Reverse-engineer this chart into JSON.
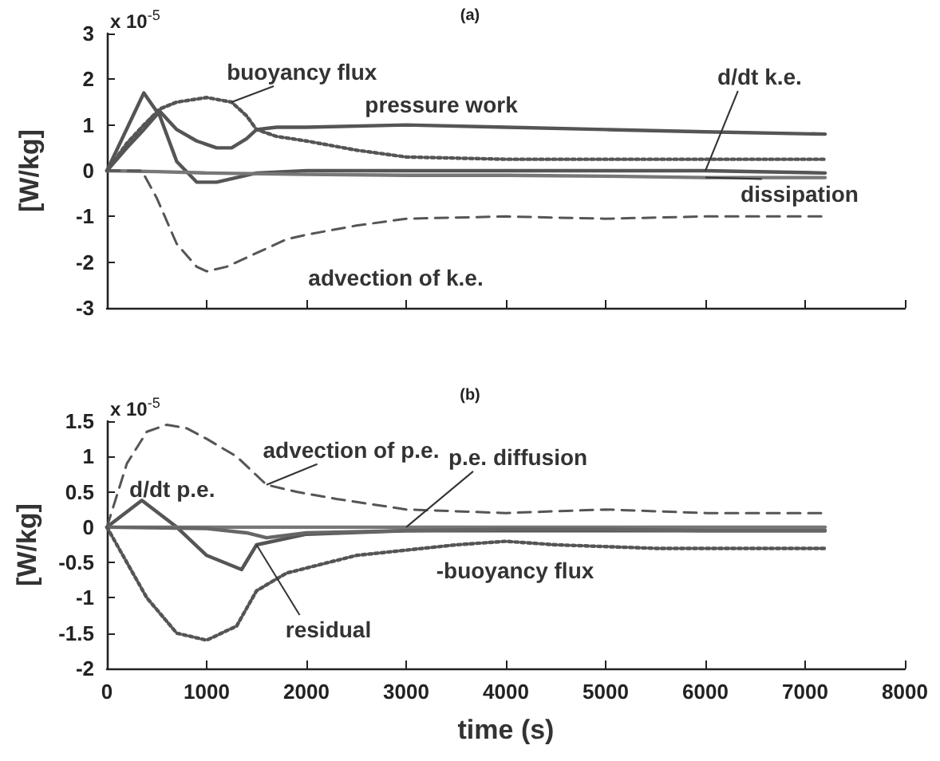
{
  "chart_data": [
    {
      "type": "line",
      "title": "(a)",
      "ylabel": "[W/kg]",
      "xlim": [
        0,
        8000
      ],
      "xticks": [
        0,
        1000,
        2000,
        3000,
        4000,
        5000,
        6000,
        7000,
        8000
      ],
      "ylim": [
        -3,
        3
      ],
      "yticks": [
        -3,
        -2,
        -1,
        0,
        1,
        2,
        3
      ],
      "tick_labels": "y",
      "grid": false,
      "marker": "none",
      "annotations": [
        "x 10$^{-5}$",
        {
          "text": "buoyancy flux",
          "x": 1250,
          "y": 1.5
        },
        {
          "text": "pressure work",
          "x": 3000,
          "y": 1.0
        },
        {
          "text": "d/dt k.e.",
          "x": 6000,
          "y": 0
        },
        {
          "text": "dissipation",
          "x": 6000,
          "y": -0.15
        },
        {
          "text": "advection of k.e.",
          "x": 2000,
          "y": -1.4
        }
      ],
      "series": [
        {
          "color": "#555555",
          "line_style": "solid",
          "x": [
            0,
            200,
            370,
            530,
            700,
            900,
            1100,
            1250,
            1400,
            1500,
            1700,
            2000,
            3000,
            4000,
            5000,
            6000,
            7200
          ],
          "values": [
            0,
            0.5,
            0.9,
            1.3,
            0.9,
            0.65,
            0.5,
            0.5,
            0.7,
            0.9,
            0.95,
            0.95,
            1.0,
            0.95,
            0.9,
            0.85,
            0.8
          ]
        },
        {
          "color": "#555555",
          "line_style": "solid",
          "x": [
            0,
            370,
            530,
            700,
            900,
            1100,
            1300,
            1500,
            2000,
            3000,
            4000,
            5000,
            6000,
            7200
          ],
          "values": [
            0,
            1.7,
            1.2,
            0.2,
            -0.25,
            -0.25,
            -0.15,
            -0.05,
            0,
            0,
            0,
            0,
            0,
            -0.05
          ]
        },
        {
          "color": "#777777",
          "line_style": "solid",
          "x": [
            0,
            500,
            1000,
            2000,
            3000,
            4000,
            5000,
            6000,
            7200
          ],
          "values": [
            0,
            -0.02,
            -0.05,
            -0.08,
            -0.1,
            -0.1,
            -0.12,
            -0.15,
            -0.15
          ]
        },
        {
          "color": "#555555",
          "line_style": "dotted",
          "x": [
            0,
            200,
            370,
            530,
            700,
            1000,
            1250,
            1400,
            1500,
            1700,
            2000,
            2500,
            3000,
            4000,
            5000,
            6000,
            7200
          ],
          "values": [
            0,
            0.6,
            1.0,
            1.35,
            1.5,
            1.6,
            1.5,
            1.2,
            0.9,
            0.75,
            0.65,
            0.45,
            0.3,
            0.25,
            0.25,
            0.25,
            0.25
          ]
        },
        {
          "color": "#555555",
          "line_style": "dashed",
          "x": [
            0,
            350,
            500,
            700,
            900,
            1000,
            1200,
            1500,
            1800,
            2000,
            2500,
            3000,
            4000,
            5000,
            6000,
            7200
          ],
          "values": [
            0,
            0,
            -0.6,
            -1.6,
            -2.1,
            -2.2,
            -2.1,
            -1.8,
            -1.5,
            -1.4,
            -1.2,
            -1.05,
            -1.0,
            -1.05,
            -1.0,
            -1.0
          ]
        }
      ]
    },
    {
      "type": "line",
      "title": "(b)",
      "xlabel": "time (s)",
      "ylabel": "[W/kg]",
      "xlim": [
        0,
        8000
      ],
      "xticks": [
        0,
        1000,
        2000,
        3000,
        4000,
        5000,
        6000,
        7000,
        8000
      ],
      "ylim": [
        -2,
        1.5
      ],
      "yticks": [
        -2,
        -1.5,
        -1,
        -0.5,
        0,
        0.5,
        1,
        1.5
      ],
      "grid": false,
      "marker": "none",
      "annotations": [
        "x 10$^{-5}$",
        {
          "text": "advection of p.e.",
          "x": 1600,
          "y": 0.6
        },
        {
          "text": "p.e. diffusion",
          "x": 3000,
          "y": 0
        },
        {
          "text": "d/dt p.e.",
          "x": 350,
          "y": 0.38
        },
        {
          "text": "-buoyancy flux",
          "x": 3500,
          "y": -0.25
        },
        {
          "text": "residual",
          "x": 1500,
          "y": -0.25
        }
      ],
      "series": [
        {
          "color": "#555555",
          "line_style": "dashed",
          "x": [
            0,
            200,
            400,
            600,
            800,
            1000,
            1300,
            1600,
            1900,
            2300,
            3000,
            4000,
            5000,
            6000,
            7200
          ],
          "values": [
            0,
            0.9,
            1.35,
            1.45,
            1.4,
            1.25,
            1.0,
            0.6,
            0.5,
            0.4,
            0.25,
            0.2,
            0.25,
            0.2,
            0.2
          ]
        },
        {
          "color": "#555555",
          "line_style": "solid",
          "x": [
            0,
            350,
            700,
            1000,
            1350,
            1500,
            2000,
            3000,
            4000,
            5000,
            6000,
            7200
          ],
          "values": [
            0,
            0.38,
            0,
            -0.4,
            -0.6,
            -0.25,
            -0.1,
            -0.05,
            -0.05,
            -0.05,
            -0.05,
            -0.05
          ]
        },
        {
          "color": "#777777",
          "line_style": "solid",
          "x": [
            0,
            1000,
            2000,
            3000,
            4000,
            5000,
            6000,
            7200
          ],
          "values": [
            0,
            0,
            0,
            0,
            0,
            0,
            0,
            0
          ]
        },
        {
          "color": "#666666",
          "line_style": "solid",
          "x": [
            0,
            1000,
            1400,
            1600,
            2000,
            3000,
            4000,
            5000,
            6000,
            7200
          ],
          "values": [
            0,
            -0.02,
            -0.08,
            -0.15,
            -0.08,
            -0.05,
            -0.03,
            -0.03,
            -0.05,
            -0.05
          ]
        },
        {
          "color": "#555555",
          "line_style": "dotted",
          "x": [
            0,
            200,
            400,
            700,
            1000,
            1300,
            1500,
            1800,
            2500,
            3500,
            4000,
            4500,
            5500,
            7200
          ],
          "values": [
            0,
            -0.5,
            -1.0,
            -1.5,
            -1.6,
            -1.4,
            -0.9,
            -0.65,
            -0.4,
            -0.25,
            -0.2,
            -0.25,
            -0.3,
            -0.3
          ]
        }
      ]
    }
  ]
}
